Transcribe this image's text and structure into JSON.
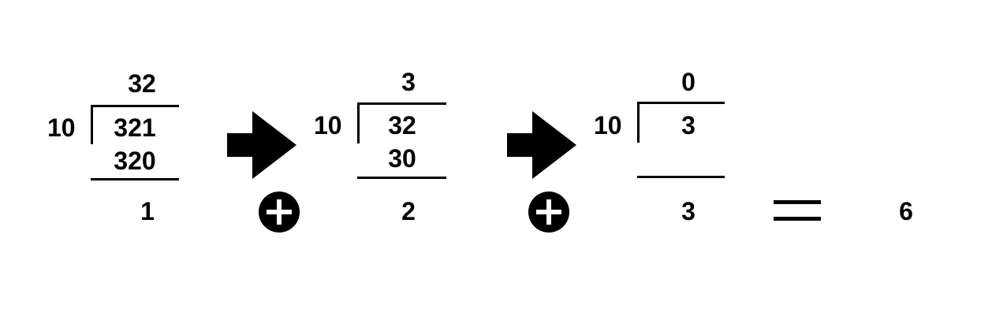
{
  "steps": [
    {
      "divisor": "10",
      "dividend": "321",
      "quotient": "32",
      "subtracted": "320",
      "remainder": "1"
    },
    {
      "divisor": "10",
      "dividend": "32",
      "quotient": "3",
      "subtracted": "30",
      "remainder": "2"
    },
    {
      "divisor": "10",
      "dividend": "3",
      "quotient": "0",
      "subtracted": "",
      "remainder": "3"
    }
  ],
  "result": "6",
  "icons": {
    "arrow": "right-arrow-icon",
    "plus": "plus-circle-icon",
    "equals": "equals-sign-icon"
  }
}
